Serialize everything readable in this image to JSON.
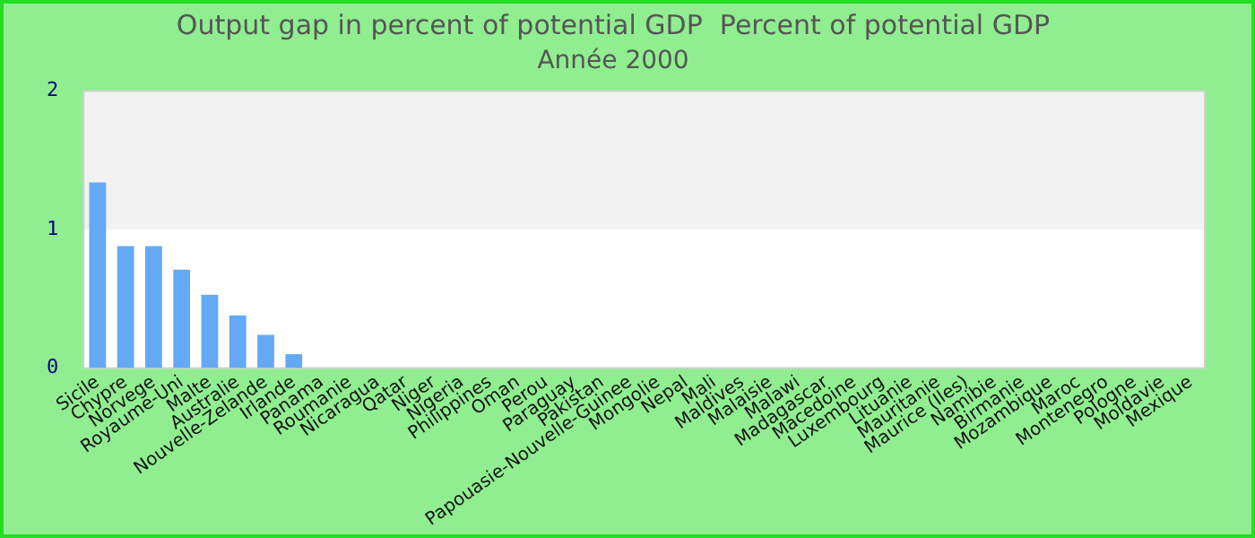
{
  "chart_data": {
    "type": "bar",
    "title": "Output gap in percent of potential GDP  Percent of potential GDP",
    "subtitle": "Année 2000",
    "categories": [
      "Sicile",
      "Chypre",
      "Norvege",
      "Royaume-Uni",
      "Malte",
      "Australie",
      "Nouvelle-Zelande",
      "Irlande",
      "Panama",
      "Roumanie",
      "Nicaragua",
      "Qatar",
      "Niger",
      "Nigeria",
      "Philippines",
      "Oman",
      "Perou",
      "Paraguay",
      "Pakistan",
      "Papouasie-Nouvelle-Guinee",
      "Mongolie",
      "Nepal",
      "Mali",
      "Maldives",
      "Malaisie",
      "Malawi",
      "Madagascar",
      "Macedoine",
      "Luxembourg",
      "Lituanie",
      "Mauritanie",
      "Maurice (Iles)",
      "Namibie",
      "Birmanie",
      "Mozambique",
      "Maroc",
      "Montenegro",
      "Pologne",
      "Moldavie",
      "Mexique"
    ],
    "values": [
      1.34,
      0.88,
      0.88,
      0.71,
      0.53,
      0.38,
      0.24,
      0.1,
      0,
      0,
      0,
      0,
      0,
      0,
      0,
      0,
      0,
      0,
      0,
      0,
      0,
      0,
      0,
      0,
      0,
      0,
      0,
      0,
      0,
      0,
      0,
      0,
      0,
      0,
      0,
      0,
      0,
      0,
      0,
      0
    ],
    "color": "#63a9f5",
    "ylim": [
      0,
      2
    ],
    "yticks": [
      0,
      1,
      2
    ],
    "bands": [
      {
        "axis": "y",
        "from": 1,
        "to": 2,
        "color": "#f2f2f2"
      }
    ],
    "grid": false,
    "legend": false
  }
}
